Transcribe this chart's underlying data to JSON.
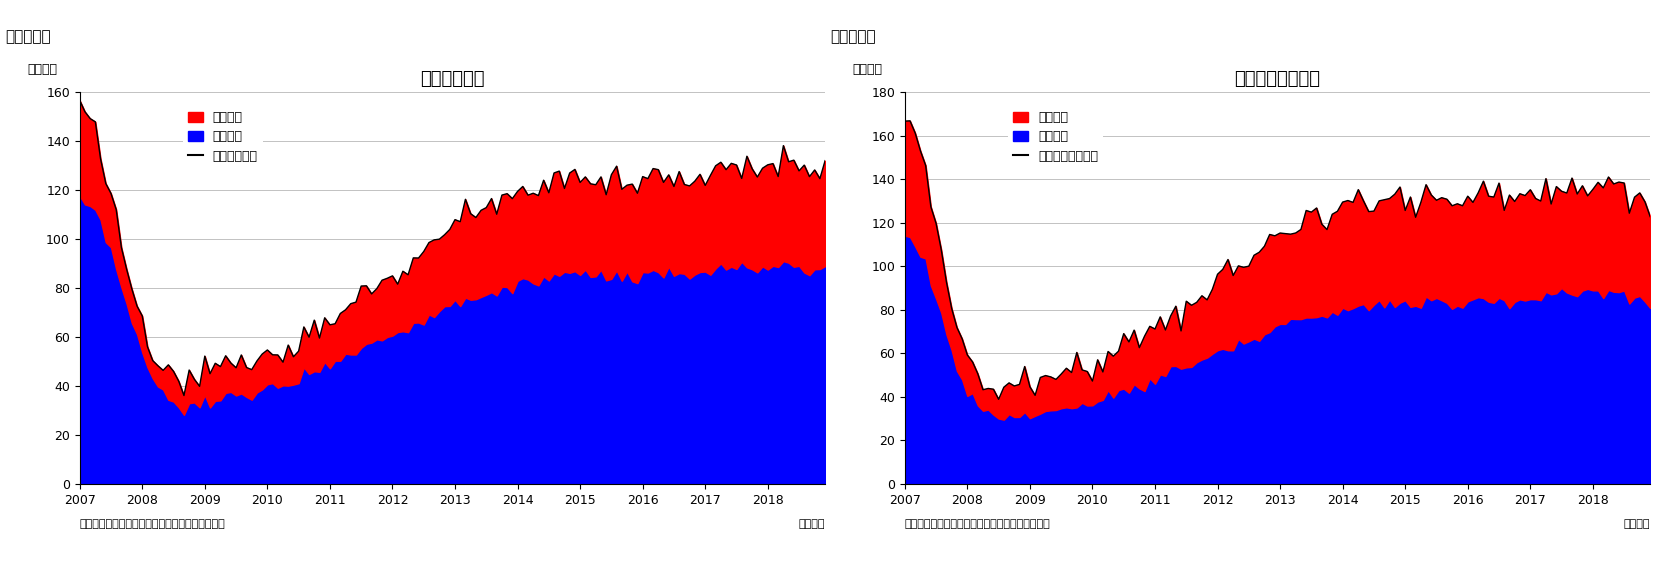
{
  "chart1": {
    "title": "住宅着工件数",
    "label": "（図表１）",
    "ylabel": "（万件）",
    "ylim": [
      0,
      160
    ],
    "yticks": [
      0,
      20,
      40,
      60,
      80,
      100,
      120,
      140,
      160
    ],
    "legend_line": "住宅着工件数",
    "legend_red": "集合住宅",
    "legend_blue": "一戸建て",
    "footer_left": "（資料）センサス局よりニッセイ基礎研究所作成",
    "footer_right": "（月次）"
  },
  "chart2": {
    "title": "住宅着工許可件数",
    "label": "（図表２）",
    "ylabel": "（万件）",
    "ylim": [
      0,
      180
    ],
    "yticks": [
      0,
      20,
      40,
      60,
      80,
      100,
      120,
      140,
      160,
      180
    ],
    "legend_line": "住宅建築許可件数",
    "legend_red": "集合住宅",
    "legend_blue": "一戸建て",
    "footer_left": "（資料）センサス局よりニッセイ基礎研究所作成",
    "footer_right": "（月次）"
  },
  "red_color": "#FF0000",
  "blue_color": "#0000FF",
  "line_color": "#000000",
  "bg_color": "#FFFFFF",
  "grid_color": "#AAAAAA",
  "n_months": 144,
  "start_year": 2007,
  "xtick_years": [
    2007,
    2008,
    2009,
    2010,
    2011,
    2012,
    2013,
    2014,
    2015,
    2016,
    2017,
    2018
  ]
}
